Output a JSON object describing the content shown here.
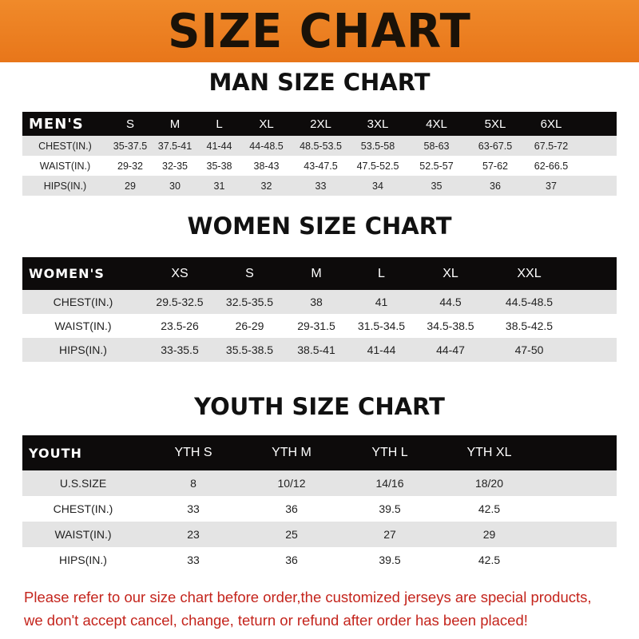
{
  "banner": {
    "title": "SIZE CHART",
    "color": "#ec8025"
  },
  "men": {
    "title": "MAN SIZE CHART",
    "header": [
      "MEN'S",
      "S",
      "M",
      "L",
      "XL",
      "2XL",
      "3XL",
      "4XL",
      "5XL",
      "6XL",
      ""
    ],
    "rows": [
      [
        "CHEST(IN.)",
        "35-37.5",
        "37.5-41",
        "41-44",
        "44-48.5",
        "48.5-53.5",
        "53.5-58",
        "58-63",
        "63-67.5",
        "67.5-72",
        ""
      ],
      [
        "WAIST(IN.)",
        "29-32",
        "32-35",
        "35-38",
        "38-43",
        "43-47.5",
        "47.5-52.5",
        "52.5-57",
        "57-62",
        "62-66.5",
        ""
      ],
      [
        "HIPS(IN.)",
        "29",
        "30",
        "31",
        "32",
        "33",
        "34",
        "35",
        "36",
        "37",
        ""
      ]
    ]
  },
  "women": {
    "title": "WOMEN SIZE CHART",
    "header": [
      "WOMEN'S",
      "XS",
      "S",
      "M",
      "L",
      "XL",
      "XXL",
      ""
    ],
    "rows": [
      [
        "CHEST(IN.)",
        "29.5-32.5",
        "32.5-35.5",
        "38",
        "41",
        "44.5",
        "44.5-48.5",
        ""
      ],
      [
        "WAIST(IN.)",
        "23.5-26",
        "26-29",
        "29-31.5",
        "31.5-34.5",
        "34.5-38.5",
        "38.5-42.5",
        ""
      ],
      [
        "HIPS(IN.)",
        "33-35.5",
        "35.5-38.5",
        "38.5-41",
        "41-44",
        "44-47",
        "47-50",
        ""
      ]
    ]
  },
  "youth": {
    "title": "YOUTH SIZE CHART",
    "header": [
      "YOUTH",
      "YTH S",
      "YTH M",
      "YTH L",
      "YTH XL",
      ""
    ],
    "rows": [
      [
        "U.S.SIZE",
        "8",
        "10/12",
        "14/16",
        "18/20",
        ""
      ],
      [
        "CHEST(IN.)",
        "33",
        "36",
        "39.5",
        "42.5",
        ""
      ],
      [
        "WAIST(IN.)",
        "23",
        "25",
        "27",
        "29",
        ""
      ],
      [
        "HIPS(IN.)",
        "33",
        "36",
        "39.5",
        "42.5",
        ""
      ]
    ]
  },
  "note": {
    "line1": "Please refer to our size chart before order,the customized jerseys are special products,",
    "line2": "we don't accept cancel, change, teturn or refund after order has been placed!",
    "color": "#c4241c"
  }
}
